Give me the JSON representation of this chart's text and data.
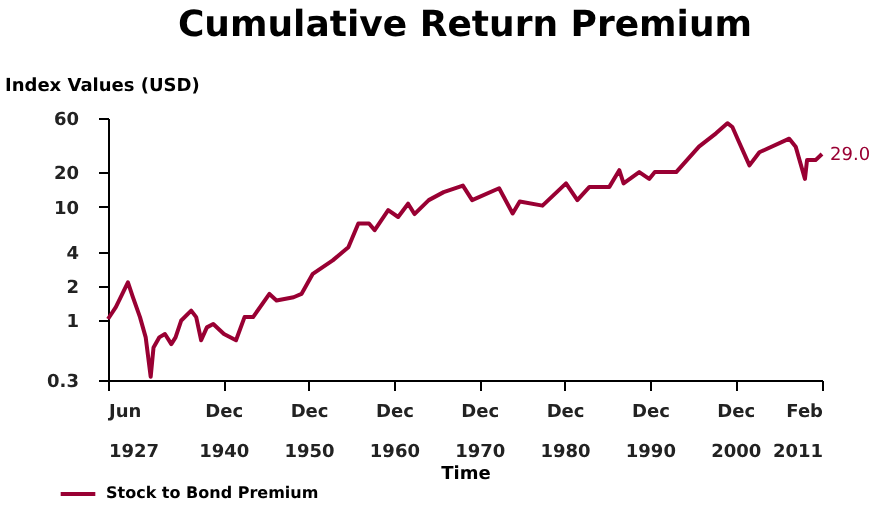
{
  "chart_data": {
    "type": "line",
    "title": "Cumulative Return Premium",
    "xlabel": "Time",
    "ylabel": "Index Values (USD)",
    "log": "y",
    "grid": false,
    "legend": "bottom left",
    "ylim": [
      0.3,
      60
    ],
    "yticks": [
      0.3,
      1,
      2,
      4,
      10,
      20,
      60
    ],
    "xlim": [
      "1927-06",
      "2011-02"
    ],
    "xticks": [
      {
        "value": "1927-06",
        "label": "Jun 1927"
      },
      {
        "value": "1940-12",
        "label": "Dec 1940"
      },
      {
        "value": "1950-12",
        "label": "Dec 1950"
      },
      {
        "value": "1960-12",
        "label": "Dec 1960"
      },
      {
        "value": "1970-12",
        "label": "Dec 1970"
      },
      {
        "value": "1980-12",
        "label": "Dec 1980"
      },
      {
        "value": "1990-12",
        "label": "Dec 1990"
      },
      {
        "value": "2000-12",
        "label": "Dec 2000"
      },
      {
        "value": "2011-02",
        "label": "Feb 2011"
      }
    ],
    "x": [
      "1927-06",
      "1928-05",
      "1929-03",
      "1929-10",
      "1930-05",
      "1931-03",
      "1931-11",
      "1932-06",
      "1932-10",
      "1933-06",
      "1934-02",
      "1934-11",
      "1935-05",
      "1936-01",
      "1937-03",
      "1937-10",
      "1938-05",
      "1939-01",
      "1939-10",
      "1941-01",
      "1942-06",
      "1943-06",
      "1944-06",
      "1946-05",
      "1947-03",
      "1949-03",
      "1950-02",
      "1951-06",
      "1953-10",
      "1955-08",
      "1956-10",
      "1958-01",
      "1958-09",
      "1960-04",
      "1961-06",
      "1962-08",
      "1963-05",
      "1965-01",
      "1966-10",
      "1969-01",
      "1970-02",
      "1973-04",
      "1974-11",
      "1975-09",
      "1978-05",
      "1981-02",
      "1982-06",
      "1983-11",
      "1986-03",
      "1987-05",
      "1987-11",
      "1989-09",
      "1990-11",
      "1991-07",
      "1994-01",
      "1996-09",
      "1998-09",
      "2000-01",
      "2000-08",
      "2001-05",
      "2002-08",
      "2003-10",
      "2007-04",
      "2008-01",
      "2009-02",
      "2009-05",
      "2010-05",
      "2011-02"
    ],
    "series": [
      {
        "name": "Stock to Bond Premium",
        "color": "#990033",
        "values": [
          1.03,
          1.31,
          1.76,
          2.16,
          1.6,
          1.07,
          0.71,
          0.32,
          0.58,
          0.71,
          0.76,
          0.62,
          0.71,
          1.0,
          1.22,
          1.07,
          0.67,
          0.87,
          0.93,
          0.76,
          0.67,
          1.07,
          1.07,
          1.71,
          1.5,
          1.6,
          1.71,
          2.57,
          3.37,
          4.4,
          7.1,
          7.1,
          6.2,
          9.3,
          8.1,
          10.6,
          8.6,
          11.4,
          13.4,
          15.3,
          11.4,
          14.5,
          8.7,
          11.1,
          10.2,
          16,
          11.4,
          14.9,
          14.9,
          20.9,
          16,
          20.1,
          17.5,
          20.1,
          20.1,
          33.6,
          44,
          54,
          50,
          37.3,
          23,
          30,
          39.5,
          33.6,
          17.5,
          25.6,
          25.6,
          29.0
        ],
        "value_labels": [
          null,
          null,
          null,
          null,
          null,
          null,
          null,
          null,
          null,
          null,
          null,
          null,
          null,
          null,
          null,
          null,
          null,
          null,
          null,
          null,
          null,
          null,
          null,
          null,
          null,
          null,
          null,
          null,
          null,
          null,
          null,
          null,
          null,
          null,
          null,
          null,
          null,
          null,
          null,
          null,
          null,
          null,
          null,
          null,
          null,
          null,
          null,
          null,
          null,
          null,
          null,
          null,
          null,
          null,
          null,
          null,
          null,
          null,
          null,
          null,
          null,
          null,
          null,
          null,
          null,
          null,
          null,
          "29.0"
        ]
      }
    ]
  }
}
